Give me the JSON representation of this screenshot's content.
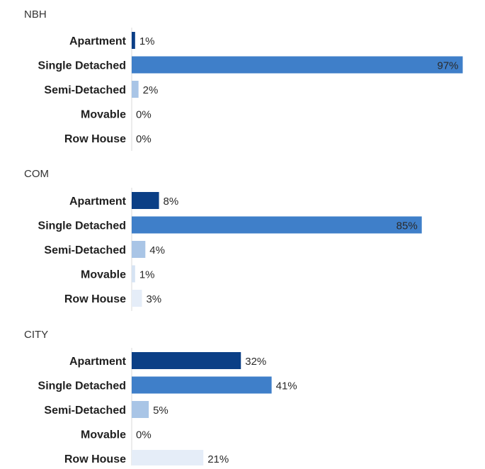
{
  "chart_data": [
    {
      "type": "bar",
      "orientation": "horizontal",
      "title": "NBH",
      "categories": [
        "Apartment",
        "Single Detached",
        "Semi-Detached",
        "Movable",
        "Row House"
      ],
      "values": [
        1,
        97,
        2,
        0,
        0
      ],
      "labels": [
        "1%",
        "97%",
        "2%",
        "0%",
        "0%"
      ],
      "unit": "%",
      "xlim": [
        0,
        100
      ],
      "grid": false,
      "legend": "none"
    },
    {
      "type": "bar",
      "orientation": "horizontal",
      "title": "COM",
      "categories": [
        "Apartment",
        "Single Detached",
        "Semi-Detached",
        "Movable",
        "Row House"
      ],
      "values": [
        8,
        85,
        4,
        1,
        3
      ],
      "labels": [
        "8%",
        "85%",
        "4%",
        "1%",
        "3%"
      ],
      "unit": "%",
      "xlim": [
        0,
        100
      ],
      "grid": false,
      "legend": "none"
    },
    {
      "type": "bar",
      "orientation": "horizontal",
      "title": "CITY",
      "categories": [
        "Apartment",
        "Single Detached",
        "Semi-Detached",
        "Movable",
        "Row House"
      ],
      "values": [
        32,
        41,
        5,
        0,
        21
      ],
      "labels": [
        "32%",
        "41%",
        "5%",
        "0%",
        "21%"
      ],
      "unit": "%",
      "xlim": [
        0,
        100
      ],
      "grid": false,
      "legend": "none"
    }
  ],
  "colors": {
    "apartment": "#0b3f86",
    "single_detached": "#3f7fc9",
    "semi_detached": "#a9c5e6",
    "movable": "#d6e3f3",
    "row_house": "#e5edf8",
    "axis": "#d8d8d8",
    "category_text": "#1f1f1f",
    "value_text": "#2a2a2a",
    "value_text_inside": "#2a2a2a",
    "title_text": "#333333"
  }
}
